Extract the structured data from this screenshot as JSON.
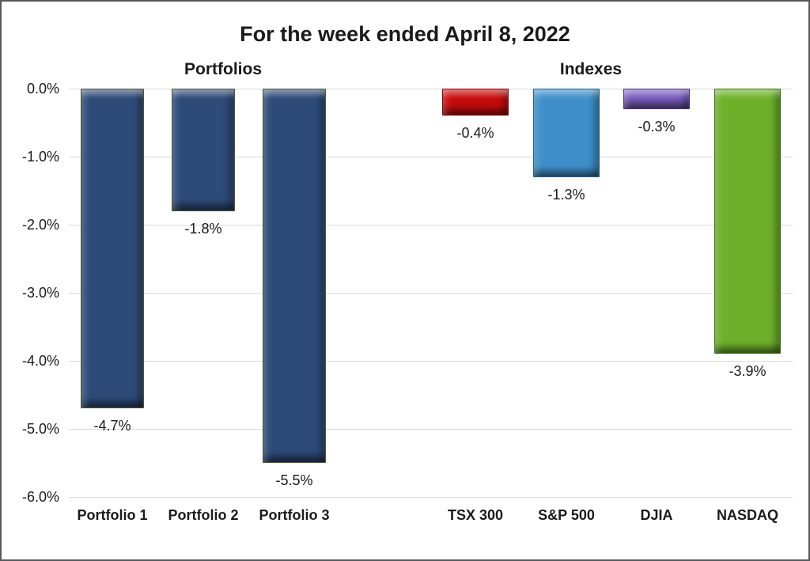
{
  "chart_data": {
    "type": "bar",
    "title": "For the week ended April 8, 2022",
    "xlabel": "",
    "ylabel": "",
    "ylim": [
      -6.0,
      0.0
    ],
    "grid": true,
    "gridline_color": "#D9D9D9",
    "legend_position": "none",
    "bar_style": "3d-bevel",
    "groups": [
      {
        "label": "Portfolios",
        "bars": [
          {
            "category": "Portfolio 1",
            "value": -4.7,
            "display": "-4.7%",
            "color": "#2E4A78",
            "edge": "#49552F"
          },
          {
            "category": "Portfolio 2",
            "value": -1.8,
            "display": "-1.8%",
            "color": "#2E4A78",
            "edge": "#49552F"
          },
          {
            "category": "Portfolio 3",
            "value": -5.5,
            "display": "-5.5%",
            "color": "#2E4A78",
            "edge": "#49552F"
          }
        ]
      },
      {
        "label": "Indexes",
        "bars": [
          {
            "category": "TSX 300",
            "value": -0.4,
            "display": "-0.4%",
            "color": "#C60B0B",
            "edge": "#7A0606"
          },
          {
            "category": "S&P 500",
            "value": -1.3,
            "display": "-1.3%",
            "color": "#3E8FC9",
            "edge": "#1F5E8C"
          },
          {
            "category": "DJIA",
            "value": -0.3,
            "display": "-0.3%",
            "color": "#7A5CC0",
            "edge": "#4A3080"
          },
          {
            "category": "NASDAQ",
            "value": -3.9,
            "display": "-3.9%",
            "color": "#6DB12A",
            "edge": "#3F6E14"
          }
        ]
      }
    ],
    "yticks": [
      {
        "value": 0.0,
        "label": "0.0%"
      },
      {
        "value": -1.0,
        "label": "-1.0%"
      },
      {
        "value": -2.0,
        "label": "-2.0%"
      },
      {
        "value": -3.0,
        "label": "-3.0%"
      },
      {
        "value": -4.0,
        "label": "-4.0%"
      },
      {
        "value": -5.0,
        "label": "-5.0%"
      },
      {
        "value": -6.0,
        "label": "-6.0%"
      }
    ]
  }
}
